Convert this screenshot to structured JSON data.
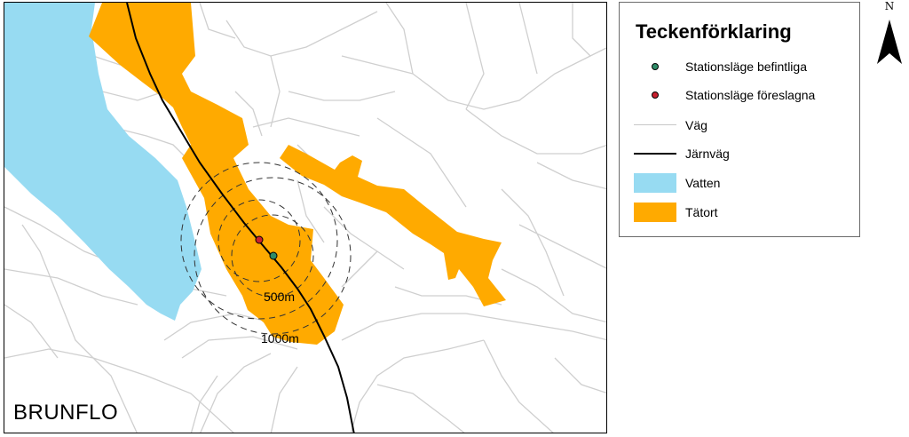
{
  "map": {
    "place_name": "BRUNFLO",
    "rings": {
      "inner_label": "500m",
      "outer_label": "1000m"
    }
  },
  "legend": {
    "title": "Teckenförklaring",
    "items": [
      {
        "label": "Stationsläge befintliga",
        "symbol": "dot",
        "color": "#2e8b67"
      },
      {
        "label": "Stationsläge föreslagna",
        "symbol": "dot",
        "color": "#c8202e"
      },
      {
        "label": "Väg",
        "symbol": "line",
        "color": "#c8c8c8"
      },
      {
        "label": "Järnväg",
        "symbol": "line",
        "color": "#000000"
      },
      {
        "label": "Vatten",
        "symbol": "fill",
        "color": "#97dbf2"
      },
      {
        "label": "Tätort",
        "symbol": "fill",
        "color": "#ffaa00"
      }
    ]
  },
  "north_arrow": {
    "label": "N"
  },
  "colors": {
    "water": "#97dbf2",
    "urban": "#ffaa00",
    "road": "#c8c8c8",
    "railway": "#000000"
  }
}
